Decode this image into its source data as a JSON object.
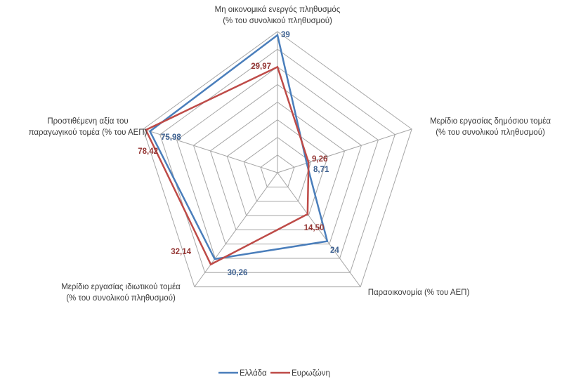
{
  "chart_data": {
    "type": "radar",
    "axes": [
      {
        "label_lines": [
          "Μη οικονομικά ενεργός πληθυσμός",
          "(% του συνολικού πληθυσμού)"
        ],
        "max": 40
      },
      {
        "label_lines": [
          "Μερίδιο εργασίας δημόσιου τομέα",
          "(% του συνολικού πληθυσμού)"
        ],
        "max": 40
      },
      {
        "label_lines": [
          "Παραοικονομία (% του ΑΕΠ)"
        ],
        "max": 40
      },
      {
        "label_lines": [
          "Μερίδιο εργασίας ιδιωτικού τομέα",
          "(% του συνολικού πληθυσμού)"
        ],
        "max": 40
      },
      {
        "label_lines": [
          "Προστιθέμενη αξία του",
          "παραγωγικού τομέα (% του ΑΕΠ)"
        ],
        "max": 80
      }
    ],
    "rings": 8,
    "series": [
      {
        "name": "Ελλάδα",
        "color": "#4a7ebb",
        "values": [
          39,
          8.71,
          24,
          30.26,
          75.98
        ],
        "labels": [
          "39",
          "8,71",
          "24",
          "30,26",
          "75,98"
        ]
      },
      {
        "name": "Ευρωζώνη",
        "color": "#be4b48",
        "values": [
          29.97,
          9.26,
          14.5,
          32.14,
          78.42
        ],
        "labels": [
          "29,97",
          "9,26",
          "14,50",
          "32,14",
          "78,42"
        ]
      }
    ],
    "legend_position": "bottom"
  }
}
